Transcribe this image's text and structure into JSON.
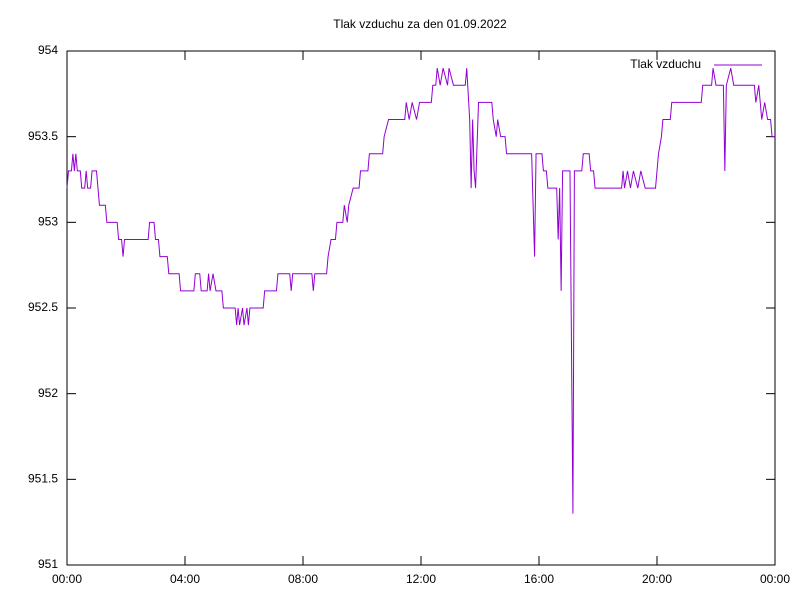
{
  "chart_data": {
    "type": "line",
    "title": "Tlak vzduchu za den 01.09.2022",
    "x": [
      0,
      0.05,
      0.15,
      0.2,
      0.25,
      0.3,
      0.35,
      0.45,
      0.5,
      0.6,
      0.65,
      0.7,
      0.8,
      0.85,
      1.0,
      1.05,
      1.1,
      1.3,
      1.35,
      1.7,
      1.75,
      1.85,
      1.9,
      1.95,
      2.75,
      2.8,
      2.95,
      3.0,
      3.1,
      3.15,
      3.4,
      3.45,
      3.8,
      3.85,
      4.3,
      4.35,
      4.5,
      4.55,
      4.75,
      4.8,
      4.85,
      4.95,
      5.05,
      5.25,
      5.3,
      5.7,
      5.75,
      5.8,
      5.85,
      5.95,
      6.0,
      6.1,
      6.15,
      6.2,
      6.65,
      6.7,
      7.1,
      7.15,
      7.55,
      7.6,
      7.65,
      8.3,
      8.35,
      8.4,
      8.8,
      8.85,
      8.95,
      9.1,
      9.15,
      9.35,
      9.4,
      9.5,
      9.55,
      9.7,
      9.9,
      9.95,
      10.2,
      10.25,
      10.7,
      10.75,
      10.9,
      11.45,
      11.5,
      11.6,
      11.7,
      11.85,
      11.95,
      12.35,
      12.4,
      12.5,
      12.55,
      12.65,
      12.75,
      12.9,
      12.95,
      13.1,
      13.5,
      13.55,
      13.65,
      13.7,
      13.75,
      13.8,
      13.85,
      13.95,
      14.4,
      14.45,
      14.55,
      14.6,
      14.7,
      14.85,
      14.9,
      15.75,
      15.8,
      15.85,
      15.9,
      16.1,
      16.15,
      16.25,
      16.3,
      16.6,
      16.65,
      16.7,
      16.75,
      16.8,
      17.05,
      17.1,
      17.15,
      17.2,
      17.45,
      17.5,
      17.7,
      17.75,
      17.85,
      17.9,
      18.8,
      18.85,
      18.9,
      19.0,
      19.1,
      19.2,
      19.35,
      19.45,
      19.6,
      19.95,
      20.0,
      20.05,
      20.15,
      20.2,
      20.45,
      20.5,
      21.5,
      21.55,
      21.85,
      21.9,
      22.0,
      22.25,
      22.3,
      22.35,
      22.5,
      22.6,
      23.3,
      23.35,
      23.45,
      23.55,
      23.65,
      23.75,
      23.85,
      23.9,
      24.0
    ],
    "series": [
      {
        "name": "Tlak vzduchu",
        "color": "#9400d3",
        "values": [
          953.2,
          953.3,
          953.3,
          953.4,
          953.3,
          953.4,
          953.3,
          953.3,
          953.2,
          953.2,
          953.3,
          953.2,
          953.2,
          953.3,
          953.3,
          953.2,
          953.1,
          953.1,
          953.0,
          953.0,
          952.9,
          952.9,
          952.8,
          952.9,
          952.9,
          953.0,
          953.0,
          952.9,
          952.9,
          952.8,
          952.8,
          952.7,
          952.7,
          952.6,
          952.6,
          952.7,
          952.7,
          952.6,
          952.6,
          952.7,
          952.6,
          952.7,
          952.6,
          952.6,
          952.5,
          952.5,
          952.4,
          952.5,
          952.4,
          952.5,
          952.4,
          952.5,
          952.4,
          952.5,
          952.5,
          952.6,
          952.6,
          952.7,
          952.7,
          952.6,
          952.7,
          952.7,
          952.6,
          952.7,
          952.7,
          952.8,
          952.9,
          952.9,
          953.0,
          953.0,
          953.1,
          953.0,
          953.1,
          953.2,
          953.2,
          953.3,
          953.3,
          953.4,
          953.4,
          953.5,
          953.6,
          953.6,
          953.7,
          953.6,
          953.7,
          953.6,
          953.7,
          953.7,
          953.8,
          953.8,
          953.9,
          953.8,
          953.9,
          953.8,
          953.9,
          953.8,
          953.8,
          953.9,
          953.6,
          953.2,
          953.6,
          953.3,
          953.2,
          953.7,
          953.7,
          953.6,
          953.5,
          953.6,
          953.5,
          953.5,
          953.4,
          953.4,
          953.1,
          952.8,
          953.4,
          953.4,
          953.3,
          953.3,
          953.2,
          953.2,
          952.9,
          953.2,
          952.6,
          953.3,
          953.3,
          952.3,
          951.3,
          953.3,
          953.3,
          953.4,
          953.4,
          953.3,
          953.3,
          953.2,
          953.2,
          953.3,
          953.2,
          953.3,
          953.2,
          953.3,
          953.2,
          953.3,
          953.2,
          953.2,
          953.3,
          953.4,
          953.5,
          953.6,
          953.6,
          953.7,
          953.7,
          953.8,
          953.8,
          953.9,
          953.8,
          953.8,
          953.3,
          953.8,
          953.9,
          953.8,
          953.8,
          953.7,
          953.8,
          953.6,
          953.7,
          953.6,
          953.6,
          953.5,
          953.5
        ]
      }
    ],
    "xlim": [
      0,
      24
    ],
    "xticks": [
      {
        "value": 0,
        "label": "00:00"
      },
      {
        "value": 4,
        "label": "04:00"
      },
      {
        "value": 8,
        "label": "08:00"
      },
      {
        "value": 12,
        "label": "12:00"
      },
      {
        "value": 16,
        "label": "16:00"
      },
      {
        "value": 20,
        "label": "20:00"
      },
      {
        "value": 24,
        "label": "00:00"
      }
    ],
    "ylim": [
      951,
      954
    ],
    "yticks": [
      951,
      951.5,
      952,
      952.5,
      953,
      953.5,
      954
    ],
    "legend": "upper right"
  }
}
